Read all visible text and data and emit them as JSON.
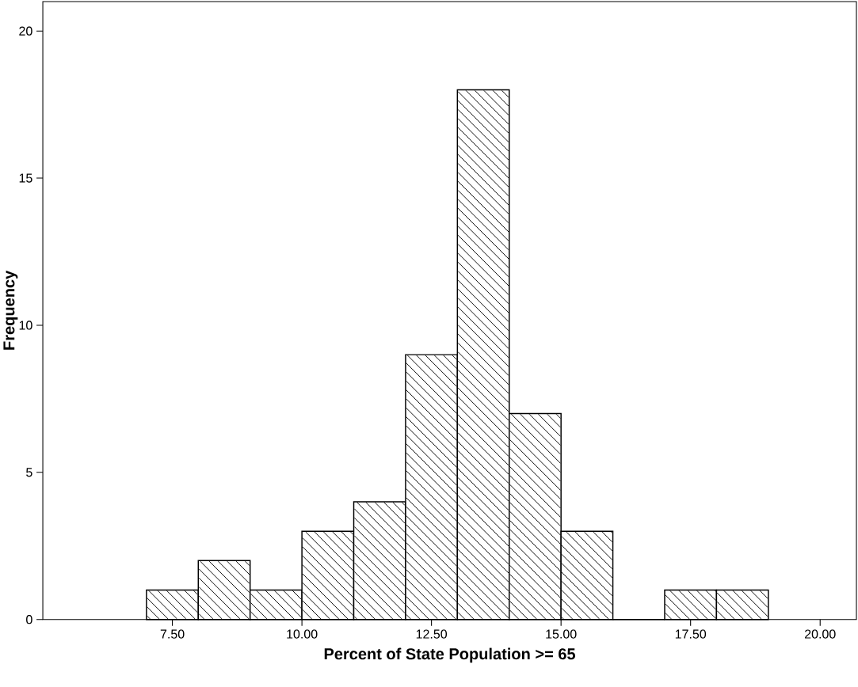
{
  "chart_data": {
    "type": "histogram",
    "xlabel": "Percent of State Population >= 65",
    "ylabel": "Frequency",
    "bins": [
      7,
      8,
      9,
      10,
      11,
      12,
      13,
      14,
      15,
      16,
      17,
      18,
      19
    ],
    "values": [
      1,
      2,
      1,
      3,
      4,
      9,
      18,
      7,
      3,
      0,
      1,
      1
    ],
    "color": "#000000",
    "xlim": [
      5,
      20.7
    ],
    "ylim": [
      0,
      21
    ],
    "xticks": [
      {
        "value": 7.5,
        "label": "7.50"
      },
      {
        "value": 10,
        "label": "10.00"
      },
      {
        "value": 12.5,
        "label": "12.50"
      },
      {
        "value": 15,
        "label": "15.00"
      },
      {
        "value": 17.5,
        "label": "17.50"
      },
      {
        "value": 20,
        "label": "20.00"
      }
    ],
    "yticks": [
      0,
      5,
      10,
      15,
      20
    ]
  }
}
